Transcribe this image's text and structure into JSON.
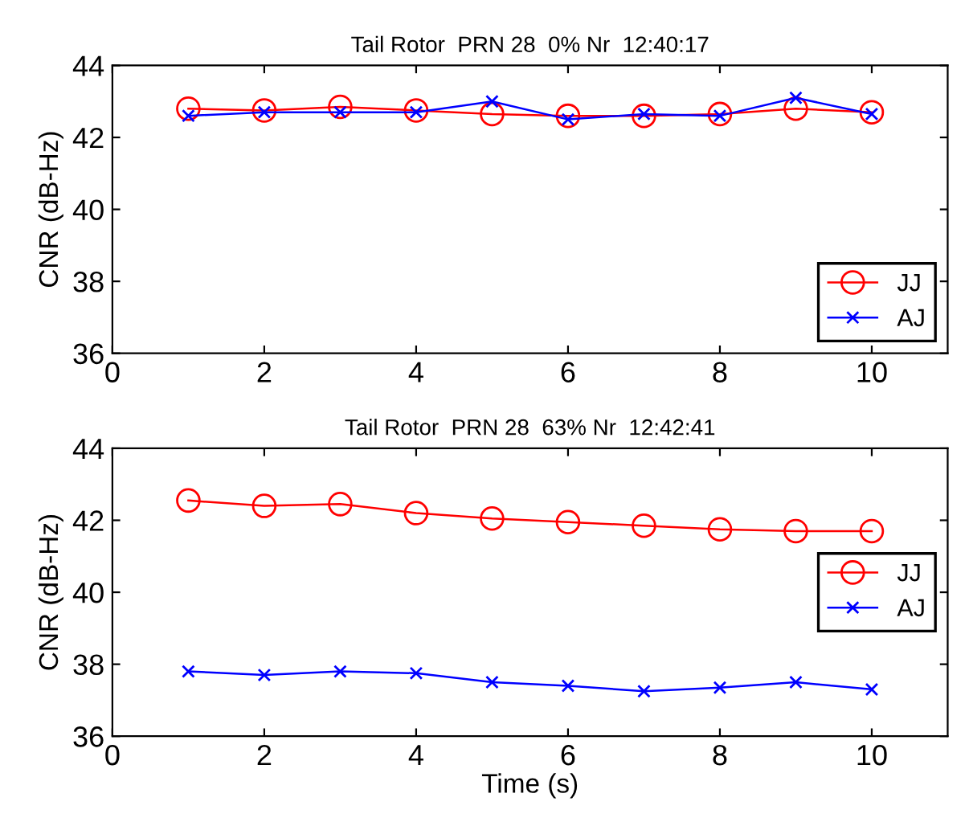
{
  "chart_data": [
    {
      "type": "line",
      "title": "Tail Rotor  PRN 28  0% Nr  12:40:17",
      "ylabel": "CNR (dB-Hz)",
      "x": [
        1,
        2,
        3,
        4,
        5,
        6,
        7,
        8,
        9,
        10
      ],
      "series": [
        {
          "name": "JJ",
          "color": "#ff0000",
          "marker": "circle",
          "values": [
            42.8,
            42.75,
            42.85,
            42.75,
            42.65,
            42.6,
            42.6,
            42.65,
            42.8,
            42.7
          ]
        },
        {
          "name": "AJ",
          "color": "#0000ff",
          "marker": "cross",
          "values": [
            42.6,
            42.7,
            42.7,
            42.7,
            43.0,
            42.5,
            42.65,
            42.6,
            43.1,
            42.65
          ]
        }
      ],
      "xlim": [
        0,
        11
      ],
      "xticks": [
        0,
        2,
        4,
        6,
        8,
        10
      ],
      "ylim": [
        36,
        44
      ],
      "yticks": [
        36,
        38,
        40,
        42,
        44
      ],
      "grid": false,
      "legend": "bottom right",
      "line_style": "solid"
    },
    {
      "type": "line",
      "title": "Tail Rotor  PRN 28  63% Nr  12:42:41",
      "xlabel": "Time (s)",
      "ylabel": "CNR (dB-Hz)",
      "x": [
        1,
        2,
        3,
        4,
        5,
        6,
        7,
        8,
        9,
        10
      ],
      "series": [
        {
          "name": "JJ",
          "color": "#ff0000",
          "marker": "circle",
          "values": [
            42.55,
            42.4,
            42.45,
            42.2,
            42.05,
            41.95,
            41.85,
            41.75,
            41.7,
            41.7
          ]
        },
        {
          "name": "AJ",
          "color": "#0000ff",
          "marker": "cross",
          "values": [
            37.8,
            37.7,
            37.8,
            37.75,
            37.5,
            37.4,
            37.25,
            37.35,
            37.5,
            37.3
          ]
        }
      ],
      "xlim": [
        0,
        11
      ],
      "xticks": [
        0,
        2,
        4,
        6,
        8,
        10
      ],
      "ylim": [
        36,
        44
      ],
      "yticks": [
        36,
        38,
        40,
        42,
        44
      ],
      "grid": false,
      "legend": "right",
      "line_style": "solid"
    }
  ]
}
